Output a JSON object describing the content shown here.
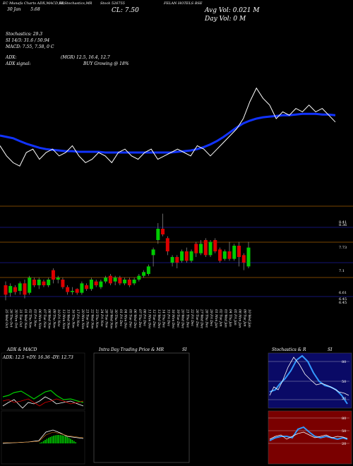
{
  "header": {
    "source": "EC Munafa",
    "charts_label": "Charts",
    "indicators": "ADX,MACD,BB",
    "si_label": "SI,Stochastics,MR",
    "stock_label": "Stock",
    "stock_code": "526755",
    "symbol": "FELAN HOTELS",
    "exchange": "BSE",
    "date_short": "30 Jan",
    "day_change": "5.68",
    "close_label": "CL: 7.50",
    "avg_vol": "Avg Vol: 0.021 M",
    "day_vol": "Day Vol: 0   M"
  },
  "stats": {
    "stochastics": "Stochastics: 29.3",
    "si": "SI 14/3: 31.6  / 50.94",
    "macd": "MACD: 7.55,  7.58, 0  C",
    "adx": "ADX:",
    "mgr": "(MGR) 12.5,  16.4,  12.7",
    "adx_signal": "ADX  signal:",
    "buy": "BUY Growing @ 18%"
  },
  "panels": {
    "adx_macd": "ADX  & MACD",
    "intraday": "Intra  Day Trading Price  & MR",
    "si_mid": "SI",
    "stoch": "Stochastics & R",
    "si_right": "SI",
    "adx_values": "ADX: 12.5 +DY: 16.36  -DY: 12.73"
  },
  "colors": {
    "up": "#00cc00",
    "down": "#dd0000",
    "ma": "#1133ff",
    "price_line": "#ffffff",
    "level_orange": "#a05a00",
    "level_blue": "#1b1b9c"
  },
  "chart_data": {
    "type": "candlestick",
    "y_axis_labels": [
      "8.41",
      "8.36",
      "7.73",
      "7.1",
      "6.61",
      "6.45",
      "6.45"
    ],
    "dates": [
      "25 Wed Oct",
      "26 Thu Oct",
      "30 Mon Oct",
      "31 Tue Oct",
      "01 Wed Nov",
      "02 Thu Nov",
      "03 Fri Nov",
      "06 Mon Nov",
      "07 Tue Nov",
      "08 Wed Nov",
      "09 Thu Nov",
      "10 Fri Nov",
      "13 Mon Nov",
      "15 Wed Nov",
      "16 Thu Nov",
      "17 Fri Nov",
      "20 Mon Nov",
      "21 Tue Nov",
      "22 Wed Nov",
      "23 Thu Nov",
      "24 Fri Nov",
      "28 Tue Nov",
      "29 Wed Nov",
      "30 Thu Nov",
      "01 Fri Dec",
      "04 Mon Dec",
      "05 Tue Dec",
      "06 Wed Dec",
      "07 Thu Dec",
      "08 Fri Dec",
      "11 Mon Dec",
      "12 Tue Dec",
      "13 Wed Dec",
      "14 Thu Dec",
      "15 Fri Dec",
      "18 Mon Dec",
      "19 Tue Dec",
      "20 Wed Dec",
      "21 Thu Dec",
      "22 Fri Dec",
      "26 Tue Dec",
      "27 Wed Dec",
      "28 Thu Dec",
      "29 Fri Dec",
      "01 Mon Jan",
      "02 Tue Jan",
      "03 Wed Jan",
      "04 Thu Jan",
      "05 Fri Jan",
      "08 Mon Jan",
      "09 Tue Jan",
      "10 Wed Jan"
    ],
    "candles": [
      {
        "o": 6.8,
        "c": 6.55,
        "h": 6.9,
        "l": 6.4
      },
      {
        "o": 6.6,
        "c": 6.78,
        "h": 6.85,
        "l": 6.5
      },
      {
        "o": 6.75,
        "c": 6.62,
        "h": 6.8,
        "l": 6.55
      },
      {
        "o": 6.65,
        "c": 6.85,
        "h": 6.9,
        "l": 6.55
      },
      {
        "o": 6.85,
        "c": 6.55,
        "h": 6.95,
        "l": 6.45
      },
      {
        "o": 6.6,
        "c": 7.0,
        "h": 7.05,
        "l": 6.55
      },
      {
        "o": 6.95,
        "c": 6.8,
        "h": 7.0,
        "l": 6.75
      },
      {
        "o": 6.8,
        "c": 6.95,
        "h": 7.0,
        "l": 6.7
      },
      {
        "o": 6.9,
        "c": 6.8,
        "h": 6.95,
        "l": 6.75
      },
      {
        "o": 6.8,
        "c": 6.95,
        "h": 7.0,
        "l": 6.75
      },
      {
        "o": 7.2,
        "c": 6.95,
        "h": 7.25,
        "l": 6.85
      },
      {
        "o": 6.95,
        "c": 7.0,
        "h": 7.05,
        "l": 6.85
      },
      {
        "o": 6.95,
        "c": 6.75,
        "h": 7.0,
        "l": 6.7
      },
      {
        "o": 6.75,
        "c": 6.62,
        "h": 6.8,
        "l": 6.55
      },
      {
        "o": 6.62,
        "c": 6.65,
        "h": 6.75,
        "l": 6.55
      },
      {
        "o": 6.7,
        "c": 6.6,
        "h": 6.72,
        "l": 6.55
      },
      {
        "o": 6.6,
        "c": 6.85,
        "h": 6.9,
        "l": 6.55
      },
      {
        "o": 6.8,
        "c": 6.7,
        "h": 6.85,
        "l": 6.65
      },
      {
        "o": 6.7,
        "c": 6.95,
        "h": 7.0,
        "l": 6.65
      },
      {
        "o": 6.9,
        "c": 6.8,
        "h": 6.95,
        "l": 6.75
      },
      {
        "o": 6.75,
        "c": 6.9,
        "h": 6.95,
        "l": 6.7
      },
      {
        "o": 6.9,
        "c": 7.0,
        "h": 7.05,
        "l": 6.85
      },
      {
        "o": 7.05,
        "c": 6.85,
        "h": 7.1,
        "l": 6.8
      },
      {
        "o": 6.9,
        "c": 7.0,
        "h": 7.05,
        "l": 6.8
      },
      {
        "o": 7.0,
        "c": 6.85,
        "h": 7.05,
        "l": 6.8
      },
      {
        "o": 6.85,
        "c": 6.95,
        "h": 7.0,
        "l": 6.8
      },
      {
        "o": 6.95,
        "c": 6.8,
        "h": 7.0,
        "l": 6.75
      },
      {
        "o": 6.85,
        "c": 6.95,
        "h": 7.0,
        "l": 6.8
      },
      {
        "o": 6.95,
        "c": 7.05,
        "h": 7.1,
        "l": 6.9
      },
      {
        "o": 7.05,
        "c": 7.15,
        "h": 7.2,
        "l": 7.0
      },
      {
        "o": 7.1,
        "c": 7.3,
        "h": 7.35,
        "l": 7.05
      },
      {
        "o": 7.6,
        "c": 7.75,
        "h": 7.8,
        "l": 7.3
      },
      {
        "o": 8.0,
        "c": 8.3,
        "h": 8.45,
        "l": 7.9
      },
      {
        "o": 8.3,
        "c": 8.15,
        "h": 8.7,
        "l": 8.1
      },
      {
        "o": 8.05,
        "c": 7.7,
        "h": 8.1,
        "l": 7.6
      },
      {
        "o": 7.4,
        "c": 7.55,
        "h": 7.6,
        "l": 7.3
      },
      {
        "o": 7.55,
        "c": 7.4,
        "h": 7.6,
        "l": 7.25
      },
      {
        "o": 7.45,
        "c": 7.7,
        "h": 7.75,
        "l": 7.4
      },
      {
        "o": 7.7,
        "c": 7.45,
        "h": 7.8,
        "l": 7.4
      },
      {
        "o": 7.45,
        "c": 7.7,
        "h": 7.75,
        "l": 7.4
      },
      {
        "o": 7.9,
        "c": 7.65,
        "h": 7.95,
        "l": 7.55
      },
      {
        "o": 7.65,
        "c": 7.9,
        "h": 8.0,
        "l": 7.6
      },
      {
        "o": 8.0,
        "c": 7.6,
        "h": 8.05,
        "l": 7.55
      },
      {
        "o": 7.6,
        "c": 7.95,
        "h": 8.0,
        "l": 7.55
      },
      {
        "o": 8.0,
        "c": 7.7,
        "h": 8.05,
        "l": 7.65
      },
      {
        "o": 7.75,
        "c": 7.45,
        "h": 7.8,
        "l": 7.4
      },
      {
        "o": 7.5,
        "c": 7.7,
        "h": 7.75,
        "l": 7.45
      },
      {
        "o": 7.7,
        "c": 7.5,
        "h": 7.95,
        "l": 7.45
      },
      {
        "o": 7.5,
        "c": 7.85,
        "h": 7.9,
        "l": 7.45
      },
      {
        "o": 7.85,
        "c": 7.55,
        "h": 7.95,
        "l": 7.3
      },
      {
        "o": 7.6,
        "c": 7.4,
        "h": 7.65,
        "l": 7.2
      },
      {
        "o": 7.3,
        "c": 7.8,
        "h": 7.95,
        "l": 7.25
      }
    ],
    "price_line": [
      7.05,
      6.9,
      6.8,
      6.75,
      6.95,
      7.0,
      6.85,
      6.95,
      7.0,
      6.9,
      6.95,
      7.05,
      6.9,
      6.8,
      6.85,
      6.95,
      6.9,
      6.8,
      6.95,
      7.0,
      6.9,
      6.85,
      6.95,
      7.0,
      6.85,
      6.9,
      6.95,
      7.0,
      6.95,
      6.9,
      7.05,
      7.0,
      6.9,
      7.0,
      7.1,
      7.2,
      7.3,
      7.45,
      7.7,
      7.9,
      7.75,
      7.65,
      7.45,
      7.55,
      7.5,
      7.6,
      7.55,
      7.65,
      7.55,
      7.6,
      7.5,
      7.4
    ],
    "ma_line": [
      7.2,
      7.18,
      7.16,
      7.12,
      7.08,
      7.05,
      7.02,
      7.0,
      6.99,
      6.98,
      6.97,
      6.97,
      6.96,
      6.96,
      6.96,
      6.96,
      6.95,
      6.95,
      6.95,
      6.95,
      6.95,
      6.95,
      6.95,
      6.95,
      6.95,
      6.95,
      6.95,
      6.96,
      6.97,
      6.98,
      7.0,
      7.03,
      7.07,
      7.12,
      7.18,
      7.25,
      7.32,
      7.38,
      7.42,
      7.45,
      7.47,
      7.48,
      7.49,
      7.5,
      7.5,
      7.51,
      7.52,
      7.52,
      7.52,
      7.51,
      7.51,
      7.5
    ],
    "ylim": [
      6.35,
      8.75
    ]
  }
}
